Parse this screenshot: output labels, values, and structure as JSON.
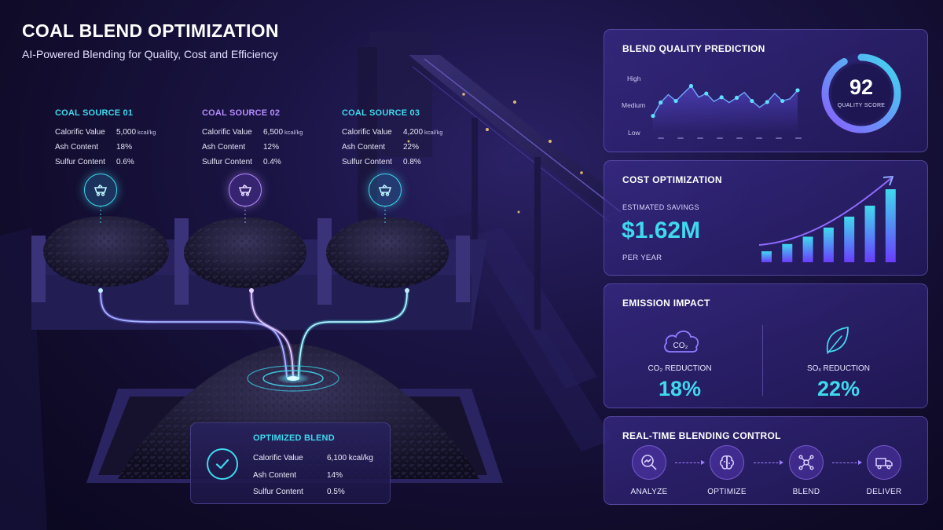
{
  "header": {
    "title": "COAL BLEND OPTIMIZATION",
    "subtitle": "AI-Powered Blending for Quality, Cost and Efficiency"
  },
  "sources": [
    {
      "title": "COAL SOURCE 01",
      "accent": "#3fd9ee",
      "rows": [
        {
          "label": "Calorific Value",
          "value": "5,000",
          "unit": "kcal/kg"
        },
        {
          "label": "Ash Content",
          "value": "18%",
          "unit": ""
        },
        {
          "label": "Sulfur Content",
          "value": "0.6%",
          "unit": ""
        }
      ]
    },
    {
      "title": "COAL SOURCE 02",
      "accent": "#b68cff",
      "rows": [
        {
          "label": "Calorific Value",
          "value": "6,500",
          "unit": "kcal/kg"
        },
        {
          "label": "Ash Content",
          "value": "12%",
          "unit": ""
        },
        {
          "label": "Sulfur Content",
          "value": "0.4%",
          "unit": ""
        }
      ]
    },
    {
      "title": "COAL SOURCE 03",
      "accent": "#3fd9ee",
      "rows": [
        {
          "label": "Calorific Value",
          "value": "4,200",
          "unit": "kcal/kg"
        },
        {
          "label": "Ash Content",
          "value": "22%",
          "unit": ""
        },
        {
          "label": "Sulfur Content",
          "value": "0.8%",
          "unit": ""
        }
      ]
    }
  ],
  "icons": {
    "source_marker": "mine-cart-icon",
    "optimized": "check-circle-icon"
  },
  "optimized": {
    "title": "OPTIMIZED BLEND",
    "rows": [
      {
        "label": "Calorific Value",
        "value": "6,100 kcal/kg"
      },
      {
        "label": "Ash Content",
        "value": "14%"
      },
      {
        "label": "Sulfur Content",
        "value": "0.5%"
      }
    ]
  },
  "quality": {
    "title": "BLEND QUALITY PREDICTION",
    "y_labels": [
      "High",
      "Medium",
      "Low"
    ],
    "score": "92",
    "score_label": "QUALITY SCORE",
    "score_fraction": 0.92
  },
  "cost": {
    "title": "COST OPTIMIZATION",
    "savings_label": "ESTIMATED SAVINGS",
    "savings_value": "$1.62M",
    "savings_period": "PER YEAR"
  },
  "emission": {
    "title": "EMISSION IMPACT",
    "co2_icon_text": "CO₂",
    "co2_label": "CO₂ REDUCTION",
    "co2_value": "18%",
    "sox_label": "SOₓ REDUCTION",
    "sox_value": "22%"
  },
  "control": {
    "title": "REAL-TIME BLENDING CONTROL",
    "steps": [
      {
        "label": "ANALYZE",
        "icon": "search-analytics-icon"
      },
      {
        "label": "OPTIMIZE",
        "icon": "brain-icon"
      },
      {
        "label": "BLEND",
        "icon": "network-icon"
      },
      {
        "label": "DELIVER",
        "icon": "truck-icon"
      }
    ]
  },
  "chart_data": [
    {
      "type": "line",
      "title": "BLEND QUALITY PREDICTION",
      "y_tick_labels": [
        "Low",
        "Medium",
        "High"
      ],
      "ylim": [
        0,
        1
      ],
      "x_tick_labels_legible": false,
      "values": [
        0.3,
        0.55,
        0.7,
        0.58,
        0.72,
        0.86,
        0.65,
        0.72,
        0.57,
        0.65,
        0.55,
        0.64,
        0.74,
        0.58,
        0.46,
        0.56,
        0.72,
        0.58,
        0.62,
        0.78
      ],
      "grid": false
    },
    {
      "type": "bar",
      "title": "COST OPTIMIZATION",
      "values": [
        12,
        20,
        28,
        38,
        50,
        62,
        80
      ],
      "trend_arrow": true,
      "axes_shown": false
    }
  ]
}
